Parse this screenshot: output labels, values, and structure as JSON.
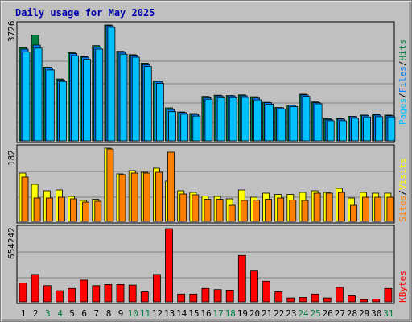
{
  "title": "Daily usage for May 2025",
  "colors": {
    "background": "#ffffff",
    "frame": "#c0c0c0",
    "plot": "#c0c0c0",
    "grid": "#808080",
    "title": "#0000aa",
    "day_normal": "#000000",
    "day_weekend": "#007f3f",
    "hits": "#008040",
    "files": "#0080ff",
    "pages": "#00c0ff",
    "visits": "#ffff00",
    "sites": "#ff8000",
    "kbytes": "#ff0000"
  },
  "chart_data": [
    {
      "type": "bar",
      "name": "pages-files-hits",
      "max_label": "3726",
      "legend": [
        "Pages",
        "/",
        "Files",
        "/",
        "Hits"
      ],
      "ylim": [
        0,
        3726
      ],
      "grid": true,
      "categories": [
        "1",
        "2",
        "3",
        "4",
        "5",
        "6",
        "7",
        "8",
        "9",
        "10",
        "11",
        "12",
        "13",
        "14",
        "15",
        "16",
        "17",
        "18",
        "19",
        "20",
        "21",
        "22",
        "23",
        "24",
        "25",
        "26",
        "27",
        "28",
        "29",
        "30",
        "31"
      ],
      "series": [
        {
          "name": "Hits",
          "values": [
            3000,
            3400,
            2370,
            1990,
            2840,
            2710,
            3060,
            3726,
            2880,
            2770,
            2500,
            1920,
            1060,
            930,
            880,
            1430,
            1470,
            1460,
            1480,
            1420,
            1240,
            1070,
            1150,
            1500,
            1250,
            720,
            720,
            790,
            830,
            840,
            830
          ]
        },
        {
          "name": "Files",
          "values": [
            2950,
            3080,
            2340,
            1960,
            2810,
            2690,
            3010,
            3700,
            2850,
            2750,
            2450,
            1910,
            1010,
            910,
            850,
            1390,
            1450,
            1450,
            1450,
            1380,
            1230,
            1060,
            1140,
            1480,
            1230,
            690,
            700,
            780,
            820,
            830,
            810
          ]
        },
        {
          "name": "Pages",
          "values": [
            2860,
            2980,
            2280,
            1910,
            2740,
            2620,
            2950,
            3650,
            2790,
            2690,
            2390,
            1850,
            940,
            860,
            800,
            1340,
            1390,
            1390,
            1400,
            1320,
            1180,
            1020,
            1100,
            1430,
            1190,
            650,
            650,
            730,
            770,
            780,
            770
          ]
        }
      ]
    },
    {
      "type": "bar",
      "name": "visits-sites",
      "max_label": "182",
      "legend": [
        "Sites",
        "/",
        "Visits"
      ],
      "ylim": [
        0,
        182
      ],
      "grid": true,
      "categories": [
        "1",
        "2",
        "3",
        "4",
        "5",
        "6",
        "7",
        "8",
        "9",
        "10",
        "11",
        "12",
        "13",
        "14",
        "15",
        "16",
        "17",
        "18",
        "19",
        "20",
        "21",
        "22",
        "23",
        "24",
        "25",
        "26",
        "27",
        "28",
        "29",
        "30",
        "31"
      ],
      "series": [
        {
          "name": "Visits",
          "values": [
            120,
            92,
            76,
            78,
            62,
            52,
            55,
            182,
            118,
            126,
            122,
            132,
            100,
            76,
            72,
            63,
            62,
            56,
            78,
            60,
            70,
            67,
            67,
            72,
            76,
            72,
            82,
            58,
            72,
            70,
            70
          ]
        },
        {
          "name": "Sites",
          "values": [
            110,
            58,
            58,
            60,
            56,
            48,
            50,
            180,
            116,
            120,
            120,
            122,
            172,
            68,
            66,
            55,
            55,
            40,
            52,
            53,
            55,
            58,
            53,
            52,
            70,
            70,
            72,
            40,
            60,
            60,
            60
          ]
        }
      ]
    },
    {
      "type": "bar",
      "name": "kbytes",
      "max_label": "654242",
      "legend": [
        "KBytes"
      ],
      "ylim": [
        0,
        654242
      ],
      "grid": true,
      "categories": [
        "1",
        "2",
        "3",
        "4",
        "5",
        "6",
        "7",
        "8",
        "9",
        "10",
        "11",
        "12",
        "13",
        "14",
        "15",
        "16",
        "17",
        "18",
        "19",
        "20",
        "21",
        "22",
        "23",
        "24",
        "25",
        "26",
        "27",
        "28",
        "29",
        "30",
        "31"
      ],
      "series": [
        {
          "name": "KBytes",
          "values": [
            170000,
            245000,
            145000,
            100000,
            120000,
            195000,
            145000,
            155000,
            155000,
            150000,
            90000,
            245000,
            654242,
            70000,
            70000,
            120000,
            110000,
            105000,
            415000,
            275000,
            185000,
            90000,
            35000,
            40000,
            70000,
            35000,
            130000,
            55000,
            20000,
            25000,
            120000
          ]
        }
      ]
    }
  ],
  "days": [
    {
      "label": "1",
      "weekend": false
    },
    {
      "label": "2",
      "weekend": false
    },
    {
      "label": "3",
      "weekend": true
    },
    {
      "label": "4",
      "weekend": true
    },
    {
      "label": "5",
      "weekend": false
    },
    {
      "label": "6",
      "weekend": false
    },
    {
      "label": "7",
      "weekend": false
    },
    {
      "label": "8",
      "weekend": false
    },
    {
      "label": "9",
      "weekend": false
    },
    {
      "label": "10",
      "weekend": true
    },
    {
      "label": "11",
      "weekend": true
    },
    {
      "label": "12",
      "weekend": false
    },
    {
      "label": "13",
      "weekend": false
    },
    {
      "label": "14",
      "weekend": false
    },
    {
      "label": "15",
      "weekend": false
    },
    {
      "label": "16",
      "weekend": false
    },
    {
      "label": "17",
      "weekend": true
    },
    {
      "label": "18",
      "weekend": true
    },
    {
      "label": "19",
      "weekend": false
    },
    {
      "label": "20",
      "weekend": false
    },
    {
      "label": "21",
      "weekend": false
    },
    {
      "label": "22",
      "weekend": false
    },
    {
      "label": "23",
      "weekend": false
    },
    {
      "label": "24",
      "weekend": true
    },
    {
      "label": "25",
      "weekend": true
    },
    {
      "label": "26",
      "weekend": false
    },
    {
      "label": "27",
      "weekend": false
    },
    {
      "label": "28",
      "weekend": false
    },
    {
      "label": "29",
      "weekend": false
    },
    {
      "label": "30",
      "weekend": false
    },
    {
      "label": "31",
      "weekend": true
    }
  ]
}
